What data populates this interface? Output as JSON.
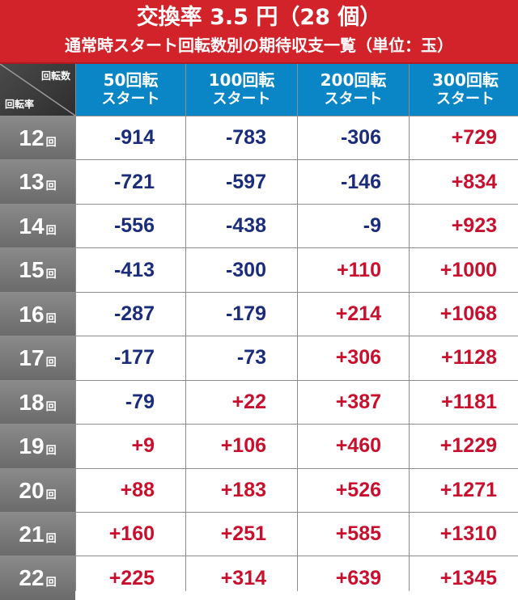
{
  "title": {
    "main": "交換率 3.5 円（28 個）",
    "sub": "通常時スタート回転数別の期待収支一覧（単位：玉）"
  },
  "corner": {
    "top_label": "回転数",
    "bottom_label": "回転率"
  },
  "columns": [
    {
      "line1": "50回転",
      "line2": "スタート"
    },
    {
      "line1": "100回転",
      "line2": "スタート"
    },
    {
      "line1": "200回転",
      "line2": "スタート"
    },
    {
      "line1": "300回転",
      "line2": "スタート"
    }
  ],
  "row_unit": "回",
  "colors": {
    "header_red": "#d2232a",
    "header_blue": "#0a86c6",
    "negative": "#1b2d7a",
    "positive": "#c8102e"
  },
  "rows": [
    {
      "rate": "12",
      "values": [
        "-914",
        "-783",
        "-306",
        "+729"
      ]
    },
    {
      "rate": "13",
      "values": [
        "-721",
        "-597",
        "-146",
        "+834"
      ]
    },
    {
      "rate": "14",
      "values": [
        "-556",
        "-438",
        "-9",
        "+923"
      ]
    },
    {
      "rate": "15",
      "values": [
        "-413",
        "-300",
        "+110",
        "+1000"
      ]
    },
    {
      "rate": "16",
      "values": [
        "-287",
        "-179",
        "+214",
        "+1068"
      ]
    },
    {
      "rate": "17",
      "values": [
        "-177",
        "-73",
        "+306",
        "+1128"
      ]
    },
    {
      "rate": "18",
      "values": [
        "-79",
        "+22",
        "+387",
        "+1181"
      ]
    },
    {
      "rate": "19",
      "values": [
        "+9",
        "+106",
        "+460",
        "+1229"
      ]
    },
    {
      "rate": "20",
      "values": [
        "+88",
        "+183",
        "+526",
        "+1271"
      ]
    },
    {
      "rate": "21",
      "values": [
        "+160",
        "+251",
        "+585",
        "+1310"
      ]
    },
    {
      "rate": "22",
      "values": [
        "+225",
        "+314",
        "+639",
        "+1345"
      ]
    }
  ]
}
